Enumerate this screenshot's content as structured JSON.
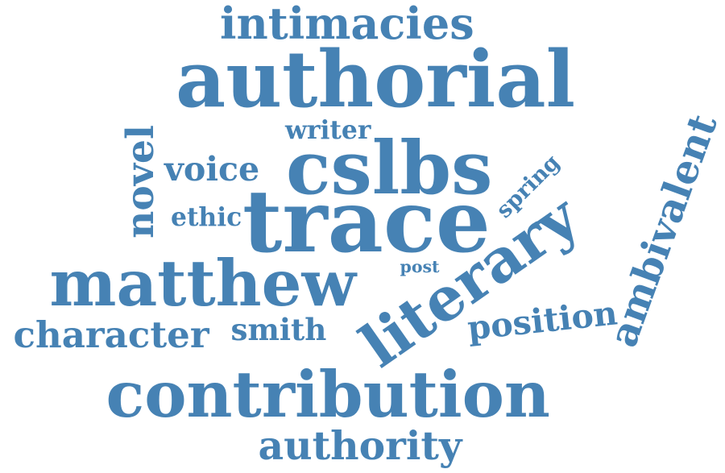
{
  "color": "#4682b4",
  "words": [
    {
      "id": "intimacies",
      "text": "intimacies"
    },
    {
      "id": "authorial",
      "text": "authorial"
    },
    {
      "id": "writer",
      "text": "writer"
    },
    {
      "id": "novel",
      "text": "novel"
    },
    {
      "id": "voice",
      "text": "voice"
    },
    {
      "id": "cslbs",
      "text": "cslbs"
    },
    {
      "id": "spring",
      "text": "spring"
    },
    {
      "id": "ambivalent",
      "text": "ambivalent"
    },
    {
      "id": "ethic",
      "text": "ethic"
    },
    {
      "id": "trace",
      "text": "trace"
    },
    {
      "id": "literary",
      "text": "literary"
    },
    {
      "id": "matthew",
      "text": "matthew"
    },
    {
      "id": "post",
      "text": "post"
    },
    {
      "id": "position",
      "text": "position"
    },
    {
      "id": "character",
      "text": "character"
    },
    {
      "id": "smith",
      "text": "smith"
    },
    {
      "id": "contribution",
      "text": "contribution"
    },
    {
      "id": "authority",
      "text": "authority"
    }
  ]
}
